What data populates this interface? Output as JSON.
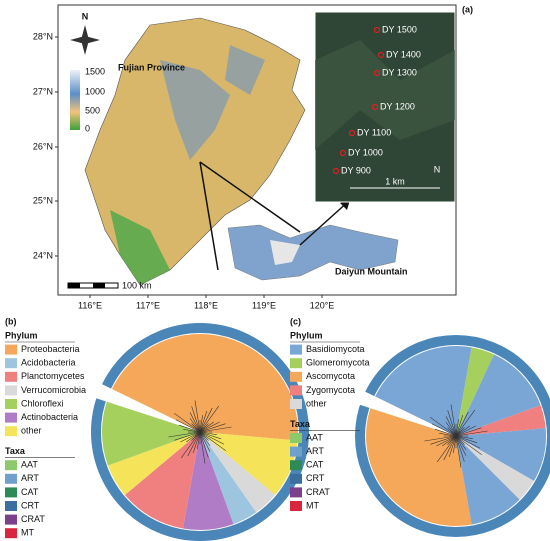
{
  "panel_a": {
    "label": "(a)",
    "province_label": "Fujian Province",
    "mountain_label": "Daiyun Mountain",
    "north": "N",
    "elevation_legend": [
      1500,
      1000,
      500,
      0
    ],
    "lat_ticks": [
      "28°N",
      "27°N",
      "26°N",
      "25°N",
      "24°N"
    ],
    "lon_ticks": [
      "116°E",
      "117°E",
      "118°E",
      "119°E",
      "120°E"
    ],
    "scale_bar": "100 km",
    "inset": {
      "sites": [
        "DY 1500",
        "DY 1400",
        "DY 1300",
        "DY 1200",
        "DY 1100",
        "DY 1000",
        "DY 900"
      ],
      "scale_bar": "1 km",
      "north": "N"
    }
  },
  "panel_b": {
    "label": "(b)",
    "phylum_title": "Phylum",
    "phyla": [
      {
        "name": "Proteobacteria",
        "color": "#f5a85a"
      },
      {
        "name": "Acidobacteria",
        "color": "#9ec5e0"
      },
      {
        "name": "Planctomycetes",
        "color": "#f08080"
      },
      {
        "name": "Verrucomicrobia",
        "color": "#d9d9d9"
      },
      {
        "name": "Chloroflexi",
        "color": "#a6d05e"
      },
      {
        "name": "Actinobacteria",
        "color": "#b07cc6"
      },
      {
        "name": "other",
        "color": "#f5e35a"
      }
    ],
    "taxa_title": "Taxa",
    "taxa": [
      {
        "name": "AAT",
        "color": "#8bc96a"
      },
      {
        "name": "ART",
        "color": "#6fa0cc"
      },
      {
        "name": "CAT",
        "color": "#2e8b57"
      },
      {
        "name": "CRT",
        "color": "#3a6fa0"
      },
      {
        "name": "CRAT",
        "color": "#7b3f8c"
      },
      {
        "name": "MT",
        "color": "#d7263d"
      }
    ]
  },
  "panel_c": {
    "label": "(c)",
    "phylum_title": "Phylum",
    "phyla": [
      {
        "name": "Basidiomycota",
        "color": "#7aa6d6"
      },
      {
        "name": "Glomeromycota",
        "color": "#a6d05e"
      },
      {
        "name": "Ascomycota",
        "color": "#f5a85a"
      },
      {
        "name": "Zygomycota",
        "color": "#f08080"
      },
      {
        "name": "other",
        "color": "#d9d9d9"
      }
    ],
    "taxa_title": "Taxa",
    "taxa": [
      {
        "name": "AAT",
        "color": "#8bc96a"
      },
      {
        "name": "ART",
        "color": "#6fa0cc"
      },
      {
        "name": "CAT",
        "color": "#2e8b57"
      },
      {
        "name": "CRT",
        "color": "#3a6fa0"
      },
      {
        "name": "CRAT",
        "color": "#7b3f8c"
      },
      {
        "name": "MT",
        "color": "#d7263d"
      }
    ]
  }
}
